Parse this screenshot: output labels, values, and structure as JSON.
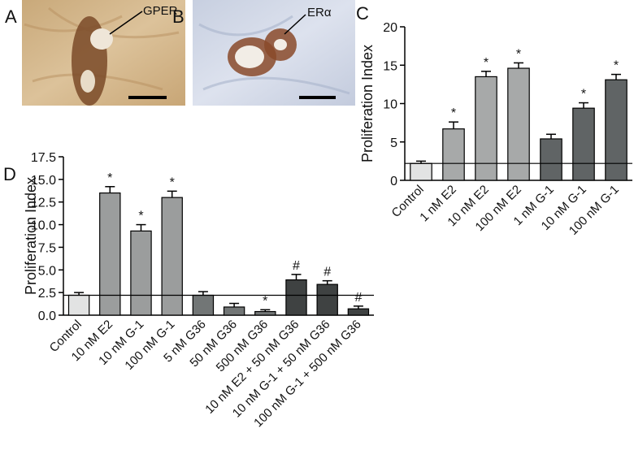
{
  "panel_labels": [
    "A",
    "B",
    "C",
    "D"
  ],
  "image_annotations": [
    "GPER",
    "ERα"
  ],
  "chart_data": [
    {
      "type": "bar",
      "ylabel": "Proliferation Index",
      "categories": [
        "Control",
        "1 nM E2",
        "10 nM E2",
        "100 nM E2",
        "1 nM G-1",
        "10 nM G-1",
        "100 nM G-1"
      ],
      "values": [
        2.2,
        6.7,
        13.5,
        14.6,
        5.4,
        9.4,
        13.1
      ],
      "errors": [
        0.3,
        0.9,
        0.7,
        0.7,
        0.6,
        0.7,
        0.7
      ],
      "markers": [
        null,
        "*",
        "*",
        "*",
        null,
        "*",
        "*"
      ],
      "colors": [
        "#e2e3e3",
        "#a7a9a9",
        "#a7a9a9",
        "#a7a9a9",
        "#606465",
        "#606465",
        "#606465"
      ],
      "reference_line": 2.2,
      "ylim": [
        0,
        20
      ],
      "yticks": [
        0,
        5,
        10,
        15,
        20
      ]
    },
    {
      "type": "bar",
      "ylabel": "Proliferation Index",
      "categories": [
        "Control",
        "10 nM E2",
        "10 nM G-1",
        "100 nM G-1",
        "5 nM G36",
        "50 nM G36",
        "500 nM G36",
        "10 nM E2 + 50 nM G36",
        "10 nM G-1 + 50 nM G36",
        "100 nM G-1 + 500 nM G36"
      ],
      "values": [
        2.2,
        13.5,
        9.3,
        13.0,
        2.2,
        0.9,
        0.4,
        3.9,
        3.4,
        0.7
      ],
      "errors": [
        0.3,
        0.7,
        0.7,
        0.7,
        0.4,
        0.4,
        0.2,
        0.6,
        0.4,
        0.3
      ],
      "markers": [
        null,
        "*",
        "*",
        "*",
        null,
        null,
        "*",
        "#",
        "#",
        "#"
      ],
      "colors": [
        "#e2e3e3",
        "#9b9d9d",
        "#9b9d9d",
        "#9b9d9d",
        "#727676",
        "#727676",
        "#727676",
        "#3f4242",
        "#3f4242",
        "#3f4242"
      ],
      "reference_line": 2.2,
      "ylim": [
        0,
        17.5
      ],
      "yticks": [
        {
          "value": 0,
          "label": "0.0"
        },
        2.5,
        {
          "value": 5,
          "label": "5.0"
        },
        7.5,
        {
          "value": 10,
          "label": "10.0"
        },
        12.5,
        {
          "value": 15,
          "label": "15.0"
        },
        17.5
      ]
    }
  ]
}
